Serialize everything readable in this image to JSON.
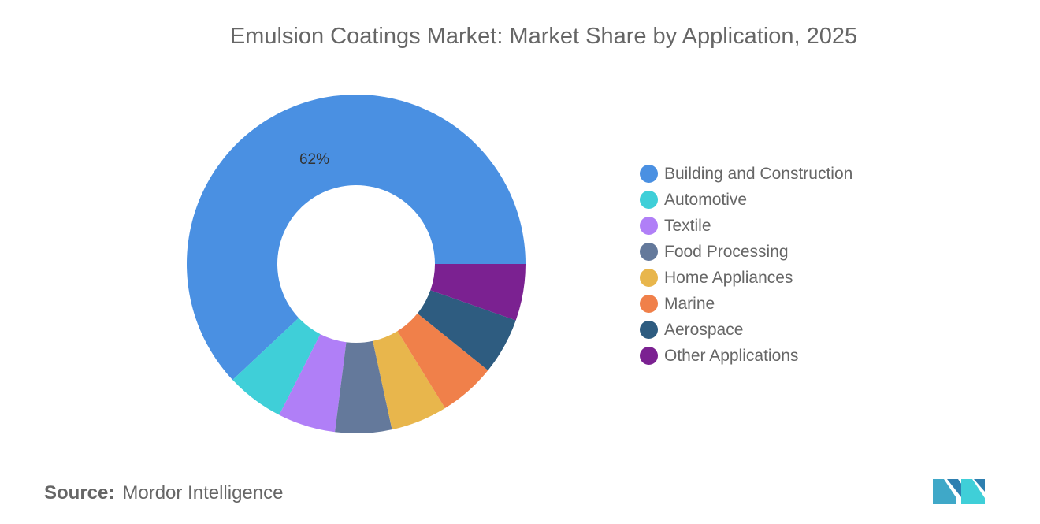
{
  "chart_data": {
    "type": "pie",
    "variant": "donut",
    "title": "Emulsion Coatings Market: Market Share by Application, 2025",
    "categories": [
      "Building and Construction",
      "Automotive",
      "Textile",
      "Food Processing",
      "Home Appliances",
      "Marine",
      "Aerospace",
      "Other Applications"
    ],
    "values": [
      62,
      5.5,
      5.5,
      5.4,
      5.4,
      5.4,
      5.4,
      5.4
    ],
    "colors": [
      "#4a90e2",
      "#3fcfd8",
      "#b07ff7",
      "#64799b",
      "#e8b64c",
      "#f0804a",
      "#2e5c80",
      "#7b2191"
    ],
    "data_labels": [
      {
        "category": "Building and Construction",
        "text": "62%"
      }
    ],
    "legend_position": "right"
  },
  "source": {
    "label": "Source:",
    "value": "Mordor Intelligence"
  }
}
